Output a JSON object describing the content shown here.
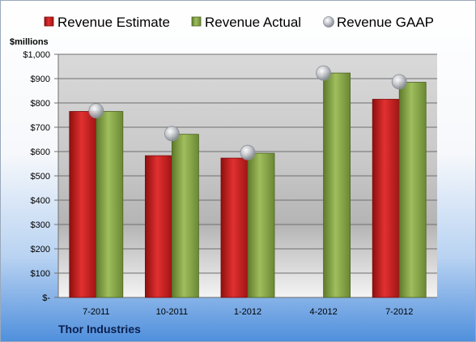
{
  "chart_data": {
    "type": "bar",
    "title": "Thor Industries",
    "ylabel": "$millions",
    "categories": [
      "7-2011",
      "10-2011",
      "1-2012",
      "4-2012",
      "7-2012"
    ],
    "series": [
      {
        "name": "Revenue Estimate",
        "kind": "bar",
        "color": "#cc1f1f",
        "values": [
          765,
          583,
          573,
          null,
          815
        ]
      },
      {
        "name": "Revenue Actual",
        "kind": "bar",
        "color": "#8aa84a",
        "values": [
          765,
          671,
          593,
          923,
          885
        ]
      },
      {
        "name": "Revenue GAAP",
        "kind": "marker",
        "color": "#b8bcc4",
        "values": [
          768,
          674,
          596,
          923,
          887
        ]
      }
    ],
    "ylim": [
      0,
      1000
    ],
    "yticks": [
      0,
      100,
      200,
      300,
      400,
      500,
      600,
      700,
      800,
      900,
      1000
    ],
    "ytick_labels": [
      "$-",
      "$100",
      "$200",
      "$300",
      "$400",
      "$500",
      "$600",
      "$700",
      "$800",
      "$900",
      "$1,000"
    ],
    "grid": true,
    "legend": "top"
  }
}
